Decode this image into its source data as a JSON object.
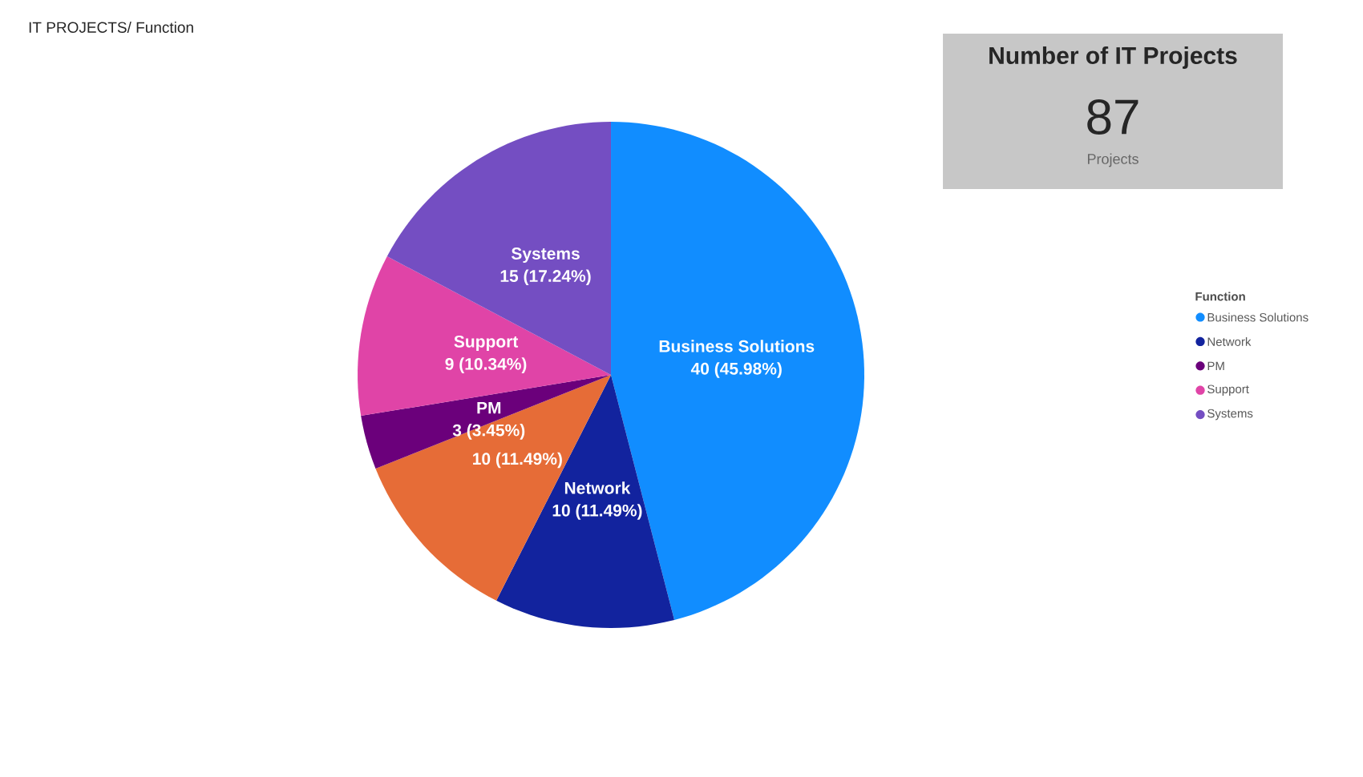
{
  "chart_data": [
    {
      "type": "pie",
      "title": "IT PROJECTS/ Function",
      "legend_title": "Function",
      "legend": "right",
      "categories": [
        "Business Solutions",
        "Network",
        null,
        "PM",
        "Support",
        "Systems"
      ],
      "values": [
        40,
        10,
        10,
        3,
        9,
        15
      ],
      "value_labels": [
        "40 (45.98%)",
        "10 (11.49%)",
        "10 (11.49%)",
        "3 (3.45%)",
        "9 (10.34%)",
        "15 (17.24%)"
      ],
      "colors": [
        "#118dff",
        "#12239e",
        "#e66c37",
        "#6b007b",
        "#e044a7",
        "#744ec2"
      ]
    },
    {
      "type": "other",
      "title": "Number of IT Projects",
      "annotations": [
        "87",
        "Projects"
      ]
    }
  ]
}
